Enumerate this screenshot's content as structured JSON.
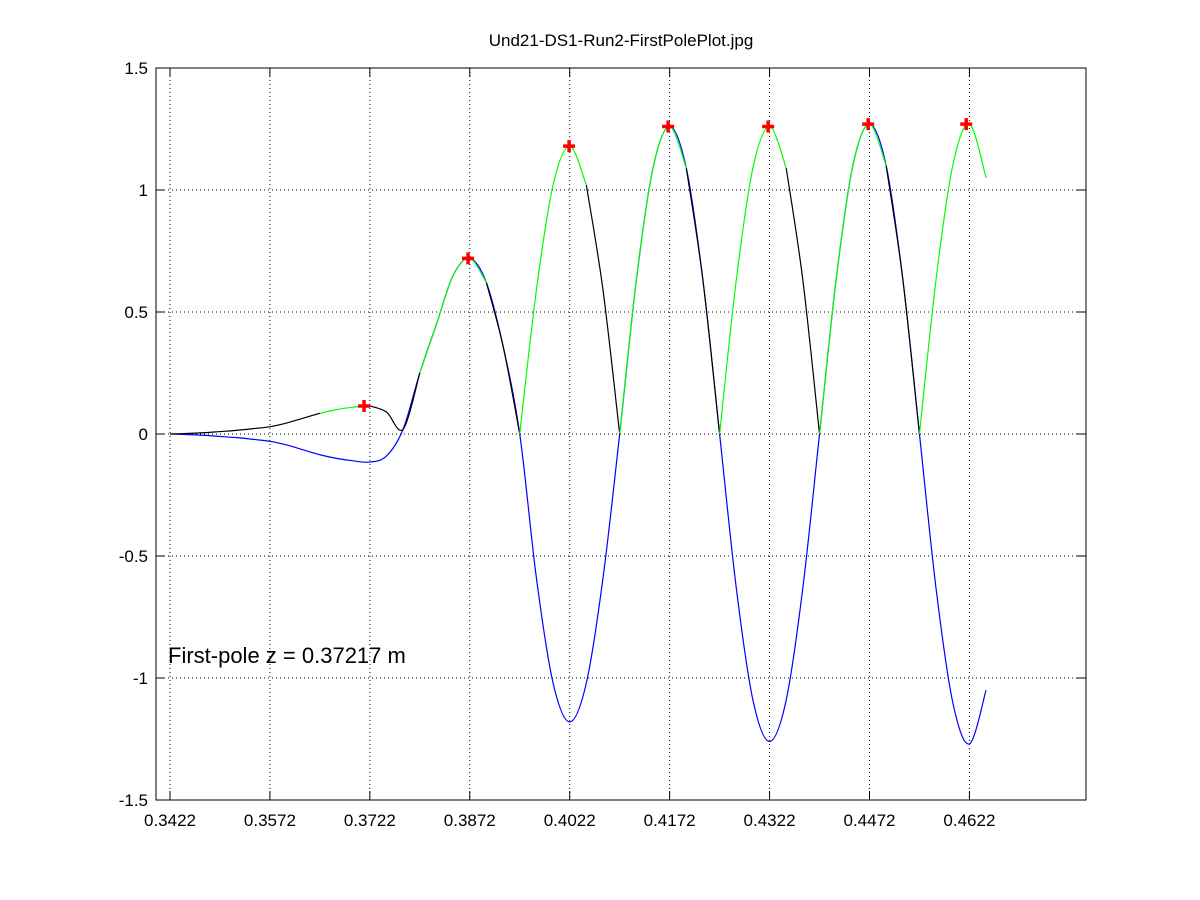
{
  "chart_data": {
    "type": "line",
    "title": "Und21-DS1-Run2-FirstPolePlot.jpg",
    "annotation": "First-pole z = 0.37217 m",
    "x": [
      0.3422,
      0.3447,
      0.3472,
      0.3497,
      0.3522,
      0.3547,
      0.3572,
      0.3597,
      0.3622,
      0.3647,
      0.3672,
      0.3697,
      0.3722,
      0.3747,
      0.3772,
      0.3797,
      0.3822,
      0.3847,
      0.3872,
      0.3897,
      0.3922,
      0.3947,
      0.3972,
      0.3997,
      0.4022,
      0.4047,
      0.4072,
      0.4097,
      0.4122,
      0.4147,
      0.4172,
      0.4197,
      0.4222,
      0.4247,
      0.4272,
      0.4297,
      0.4322,
      0.4347,
      0.4372,
      0.4397,
      0.4422,
      0.4447,
      0.4472,
      0.4497,
      0.4522,
      0.4547,
      0.4572,
      0.4597,
      0.4622,
      0.4647
    ],
    "series": [
      {
        "color": "#0000ff",
        "values": [
          0,
          -0.002,
          -0.005,
          -0.01,
          -0.015,
          -0.022,
          -0.03,
          -0.045,
          -0.065,
          -0.085,
          -0.1,
          -0.11,
          -0.115,
          -0.09,
          0.02,
          0.25,
          0.45,
          0.65,
          0.72,
          0.62,
          0.36,
          0,
          -0.59,
          -1.02,
          -1.18,
          -1.02,
          -0.59,
          0,
          0.63,
          1.09,
          1.26,
          1.09,
          0.63,
          0,
          -0.63,
          -1.09,
          -1.26,
          -1.09,
          -0.63,
          0,
          0.635,
          1.1,
          1.27,
          1.1,
          0.635,
          0,
          -0.635,
          -1.1,
          -1.27,
          -1.05
        ]
      },
      {
        "color": "#000000",
        "values": [
          0,
          0.002,
          0.005,
          0.01,
          0.015,
          0.022,
          0.03,
          0.045,
          0.065,
          0.085,
          null,
          null,
          0.115,
          0.09,
          0.02,
          0.25,
          null,
          null,
          null,
          0.62,
          0.36,
          0,
          null,
          null,
          null,
          1.02,
          0.59,
          0,
          null,
          null,
          null,
          1.09,
          0.63,
          0,
          null,
          null,
          null,
          1.09,
          0.63,
          0,
          null,
          null,
          null,
          1.1,
          0.635,
          0,
          null,
          null,
          null,
          null
        ]
      },
      {
        "color": "#00ff00",
        "values": [
          null,
          null,
          null,
          null,
          null,
          null,
          null,
          null,
          null,
          0.085,
          0.1,
          0.11,
          0.115,
          null,
          null,
          0.25,
          0.45,
          0.65,
          0.72,
          0.62,
          null,
          0,
          0.59,
          1.02,
          1.18,
          1.02,
          null,
          0,
          0.63,
          1.09,
          1.26,
          1.09,
          null,
          0,
          0.63,
          1.09,
          1.26,
          1.09,
          null,
          0,
          0.635,
          1.1,
          1.27,
          1.1,
          null,
          0,
          0.635,
          1.1,
          1.27,
          1.05
        ]
      }
    ],
    "markers": {
      "color": "#ff0000",
      "x": [
        0.37133,
        0.38694,
        0.40211,
        0.41697,
        0.43199,
        0.447,
        0.46172
      ],
      "y": [
        0.115,
        0.72,
        1.18,
        1.26,
        1.26,
        1.27,
        1.27
      ]
    },
    "xlim": [
      0.3401,
      0.4797
    ],
    "xticks": [
      0.3422,
      0.3572,
      0.3722,
      0.3872,
      0.4022,
      0.4172,
      0.4322,
      0.4472,
      0.4622
    ],
    "ylim": [
      -1.5,
      1.5
    ],
    "yticks": [
      -1.5,
      -1,
      -0.5,
      0,
      0.5,
      1,
      1.5
    ],
    "grid": true
  }
}
